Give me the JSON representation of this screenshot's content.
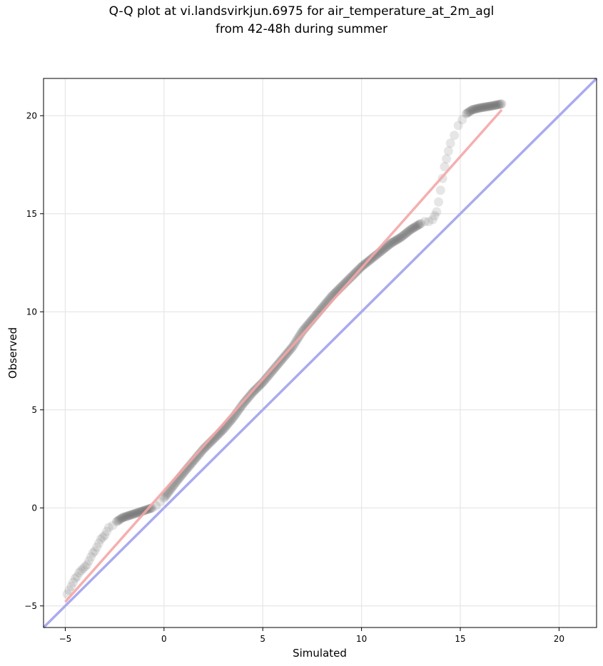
{
  "chart_data": {
    "type": "scatter",
    "title": "Q-Q plot at vi.landsvirkjun.6975 for air_temperature_at_2m_agl",
    "subtitle": "from 42-48h during summer",
    "xlabel": "Simulated",
    "ylabel": "Observed",
    "xlim": [
      -6.1,
      21.9
    ],
    "ylim": [
      -6.1,
      21.9
    ],
    "xticks": [
      -5,
      0,
      5,
      10,
      15,
      20
    ],
    "yticks": [
      -5,
      0,
      5,
      10,
      15,
      20
    ],
    "grid": true,
    "reference_line": {
      "x": [
        -6.1,
        21.9
      ],
      "y": [
        -6.1,
        21.9
      ],
      "color": "#aaaaee"
    },
    "fit_line": {
      "x": [
        -5.0,
        17.1
      ],
      "y": [
        -4.8,
        20.3
      ],
      "color": "#f4a6a6"
    },
    "quantiles": {
      "x": [
        -4.9,
        -4.8,
        -4.7,
        -4.6,
        -4.5,
        -4.4,
        -4.3,
        -4.2,
        -4.1,
        -4.0,
        -3.9,
        -3.8,
        -3.7,
        -3.6,
        -3.5,
        -3.4,
        -3.3,
        -3.2,
        -3.1,
        -3.0,
        -2.9,
        -2.8,
        -2.6,
        -2.4,
        -2.1,
        -1.8,
        -1.5,
        -1.2,
        -0.9,
        -0.6,
        -0.4,
        -0.2,
        0.0,
        0.3,
        0.6,
        1.0,
        1.5,
        2.0,
        2.5,
        3.0,
        3.5,
        4.0,
        4.5,
        5.0,
        5.5,
        6.0,
        6.5,
        7.0,
        7.5,
        8.0,
        8.5,
        9.0,
        9.5,
        10.0,
        10.5,
        11.0,
        11.5,
        12.0,
        12.5,
        13.0,
        13.2,
        13.4,
        13.6,
        13.7,
        13.8,
        13.9,
        14.0,
        14.1,
        14.2,
        14.3,
        14.4,
        14.5,
        14.7,
        14.9,
        15.1,
        15.3,
        15.6,
        16.0,
        16.6,
        17.1
      ],
      "y": [
        -4.4,
        -4.2,
        -4.0,
        -3.8,
        -3.6,
        -3.5,
        -3.3,
        -3.2,
        -3.1,
        -3.0,
        -2.9,
        -2.7,
        -2.5,
        -2.3,
        -2.2,
        -2.0,
        -1.8,
        -1.6,
        -1.5,
        -1.4,
        -1.2,
        -1.0,
        -0.9,
        -0.7,
        -0.5,
        -0.4,
        -0.3,
        -0.2,
        -0.1,
        0.0,
        0.1,
        0.3,
        0.5,
        0.9,
        1.3,
        1.8,
        2.4,
        3.0,
        3.5,
        4.0,
        4.6,
        5.3,
        5.9,
        6.4,
        7.0,
        7.6,
        8.2,
        9.0,
        9.6,
        10.2,
        10.8,
        11.3,
        11.8,
        12.3,
        12.7,
        13.1,
        13.5,
        13.8,
        14.2,
        14.5,
        14.6,
        14.6,
        14.7,
        14.9,
        15.1,
        15.6,
        16.2,
        16.8,
        17.4,
        17.8,
        18.2,
        18.6,
        19.0,
        19.5,
        19.8,
        20.1,
        20.3,
        20.4,
        20.5,
        20.6
      ]
    }
  }
}
